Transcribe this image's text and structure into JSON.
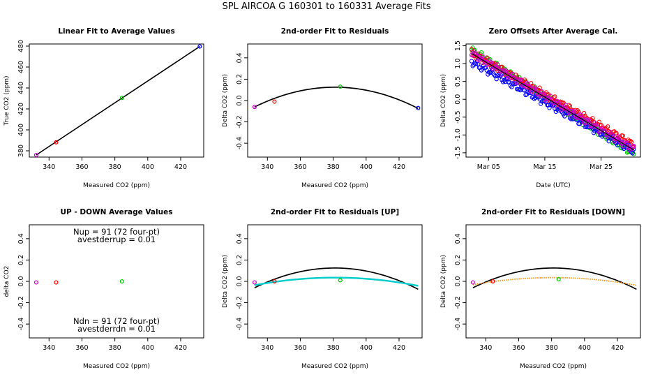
{
  "title": "SPL   AIRCOA G   160301 to 160331   Average Fits",
  "colors": {
    "black": "#000000",
    "red": "#ff0000",
    "green": "#00cc00",
    "blue": "#0000ff",
    "magenta": "#cc00cc",
    "cyan": "#00cccc",
    "orange": "#ff8c00"
  },
  "chart_data": [
    {
      "id": "p1",
      "type": "scatter",
      "title": "Linear Fit to Average Values",
      "xlabel": "Measured CO2 (ppm)",
      "ylabel": "True CO2 (ppm)",
      "xlim": [
        328,
        434
      ],
      "ylim": [
        374,
        482
      ],
      "xticks": [
        340,
        360,
        380,
        400,
        420
      ],
      "yticks": [
        380,
        400,
        420,
        440,
        460,
        480
      ],
      "points": [
        {
          "x": 332.2,
          "y": 376.0,
          "color": "magenta"
        },
        {
          "x": 344.3,
          "y": 388.1,
          "color": "red"
        },
        {
          "x": 384.3,
          "y": 430.5,
          "color": "green"
        },
        {
          "x": 431.6,
          "y": 479.6,
          "color": "blue"
        }
      ],
      "lines": [
        {
          "kind": "linear",
          "x0": 332.2,
          "y0": 376.0,
          "x1": 431.6,
          "y1": 479.6,
          "color": "black"
        }
      ]
    },
    {
      "id": "p2",
      "type": "scatter",
      "title": "2nd-order Fit to Residuals",
      "xlabel": "Measured CO2 (ppm)",
      "ylabel": "Delta CO2 (ppm)",
      "xlim": [
        328,
        434
      ],
      "ylim": [
        -0.53,
        0.53
      ],
      "xticks": [
        340,
        360,
        380,
        400,
        420
      ],
      "yticks": [
        -0.4,
        -0.2,
        0.0,
        0.2,
        0.4
      ],
      "points": [
        {
          "x": 332.2,
          "y": -0.06,
          "color": "magenta"
        },
        {
          "x": 344.3,
          "y": -0.01,
          "color": "red"
        },
        {
          "x": 384.3,
          "y": 0.13,
          "color": "green"
        },
        {
          "x": 431.6,
          "y": -0.07,
          "color": "blue"
        }
      ],
      "curves": [
        {
          "name": "fit",
          "color": "black",
          "a": -7.78e-05,
          "xv": 381.0,
          "yv": 0.125,
          "xmin": 332.2,
          "xmax": 431.6
        }
      ]
    },
    {
      "id": "p3",
      "type": "scatter",
      "title": "Zero Offsets After Average Cal.",
      "xlabel": "Date (UTC)",
      "ylabel": "Delta CO2 (ppm)",
      "xlim": [
        0,
        31
      ],
      "ylim": [
        -1.62,
        1.55
      ],
      "xticks": [
        4,
        14,
        24
      ],
      "xticklabels": [
        "Mar 05",
        "Mar 15",
        "Mar 25"
      ],
      "yticks": [
        -1.5,
        -1.0,
        -0.5,
        0.0,
        0.5,
        1.0,
        1.5
      ],
      "yticklabels": [
        "-1.5",
        "-1.0",
        "-0.5",
        "0.0",
        "0.5",
        "1.0",
        "1.5"
      ],
      "bands": [
        {
          "color": "green",
          "start": [
            1.0,
            1.38
          ],
          "end": [
            29.8,
            -1.52
          ]
        },
        {
          "color": "red",
          "start": [
            1.0,
            1.3
          ],
          "end": [
            29.8,
            -1.28
          ]
        },
        {
          "color": "blue",
          "start": [
            1.0,
            1.05
          ],
          "end": [
            29.8,
            -1.45
          ]
        },
        {
          "color": "magenta",
          "start": [
            1.0,
            1.3
          ],
          "end": [
            29.8,
            -1.4
          ]
        }
      ],
      "trend": {
        "color": "black",
        "start": [
          1.0,
          1.28
        ],
        "end": [
          29.8,
          -1.42
        ]
      }
    },
    {
      "id": "p4",
      "type": "scatter",
      "title": "UP - DOWN Average Values",
      "xlabel": "Measured CO2 (ppm)",
      "ylabel": "delta CO2",
      "xlim": [
        328,
        434
      ],
      "ylim": [
        -0.53,
        0.53
      ],
      "xticks": [
        340,
        360,
        380,
        400,
        420
      ],
      "yticks": [
        -0.4,
        -0.2,
        0.0,
        0.2,
        0.4
      ],
      "points": [
        {
          "x": 332.2,
          "y": -0.01,
          "color": "magenta"
        },
        {
          "x": 344.3,
          "y": -0.01,
          "color": "red"
        },
        {
          "x": 384.3,
          "y": 0.0,
          "color": "green"
        }
      ],
      "annotations": [
        "Nup = 91 (72 four-pt)",
        "avestderrup =  0.01",
        "Ndn = 91 (72 four-pt)",
        "avestderrdn =  0.01"
      ]
    },
    {
      "id": "p5",
      "type": "scatter",
      "title": "2nd-order Fit to Residuals [UP]",
      "xlabel": "Measured CO2 (ppm)",
      "ylabel": "Delta CO2 (ppm)",
      "xlim": [
        328,
        434
      ],
      "ylim": [
        -0.53,
        0.53
      ],
      "xticks": [
        340,
        360,
        380,
        400,
        420
      ],
      "yticks": [
        -0.4,
        -0.2,
        0.0,
        0.2,
        0.4
      ],
      "points": [
        {
          "x": 332.2,
          "y": -0.01,
          "color": "magenta"
        },
        {
          "x": 344.3,
          "y": 0.0,
          "color": "red"
        },
        {
          "x": 384.3,
          "y": 0.01,
          "color": "green"
        }
      ],
      "curves": [
        {
          "name": "fit",
          "color": "black",
          "a": -7.78e-05,
          "xv": 381.0,
          "yv": 0.125,
          "xmin": 332.2,
          "xmax": 431.6
        },
        {
          "name": "up",
          "color": "cyan",
          "a": -3e-05,
          "xv": 381.0,
          "yv": 0.035,
          "xmin": 332.2,
          "xmax": 431.6
        }
      ]
    },
    {
      "id": "p6",
      "type": "scatter",
      "title": "2nd-order Fit to Residuals [DOWN]",
      "xlabel": "Measured CO2 (ppm)",
      "ylabel": "Delta CO2 (ppm)",
      "xlim": [
        328,
        434
      ],
      "ylim": [
        -0.53,
        0.53
      ],
      "xticks": [
        340,
        360,
        380,
        400,
        420
      ],
      "yticks": [
        -0.4,
        -0.2,
        0.0,
        0.2,
        0.4
      ],
      "points": [
        {
          "x": 332.2,
          "y": -0.01,
          "color": "magenta"
        },
        {
          "x": 344.3,
          "y": 0.0,
          "color": "red"
        },
        {
          "x": 384.3,
          "y": 0.02,
          "color": "green"
        }
      ],
      "curves": [
        {
          "name": "fit",
          "color": "black",
          "a": -7.78e-05,
          "xv": 381.0,
          "yv": 0.125,
          "xmin": 332.2,
          "xmax": 431.6
        },
        {
          "name": "down",
          "color": "orange",
          "a": -2.8e-05,
          "xv": 381.0,
          "yv": 0.035,
          "xmin": 332.2,
          "xmax": 431.6,
          "dotted": true
        }
      ]
    }
  ]
}
